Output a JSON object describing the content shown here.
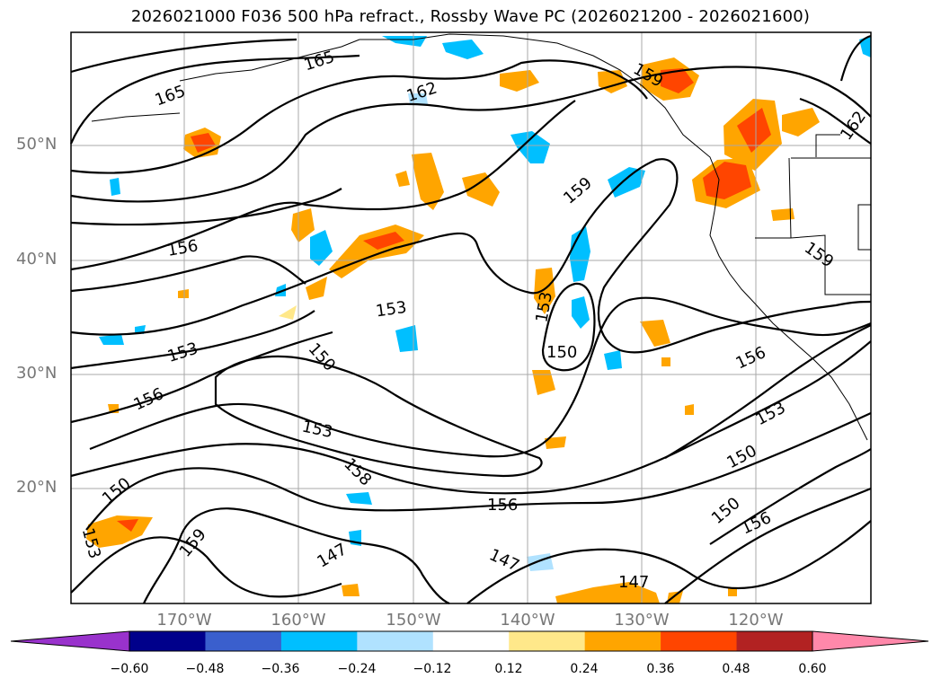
{
  "title": "2026021000 F036 500 hPa refract., Rossby Wave PC (2026021200 - 2026021600)",
  "lat_labels": [
    "50°N",
    "40°N",
    "30°N",
    "20°N"
  ],
  "lon_labels": [
    "170°W",
    "160°W",
    "150°W",
    "140°W",
    "130°W",
    "120°W"
  ],
  "contour_labels": [
    "165",
    "165",
    "162",
    "159",
    "162",
    "159",
    "156",
    "159",
    "153",
    "153",
    "150",
    "153",
    "150",
    "156",
    "156",
    "153",
    "153",
    "150",
    "158",
    "150",
    "156",
    "150",
    "159",
    "153",
    "156",
    "147",
    "147"
  ],
  "colorbar": {
    "ticks": [
      "−0.60",
      "−0.48",
      "−0.36",
      "−0.24",
      "−0.12",
      "0.12",
      "0.24",
      "0.36",
      "0.48",
      "0.60"
    ],
    "colors": [
      "#9932cc",
      "#00008b",
      "#3a5fcd",
      "#00bfff",
      "#b0e2ff",
      "#ffffff",
      "#ffe88a",
      "#ffa500",
      "#ff4500",
      "#b22222",
      "#ff88aa"
    ]
  },
  "colors": {
    "negative_shade": "#00bfff",
    "positive_shade": "#ffa500",
    "strong_positive": "#ff4500",
    "grid": "#a8a8a8"
  }
}
